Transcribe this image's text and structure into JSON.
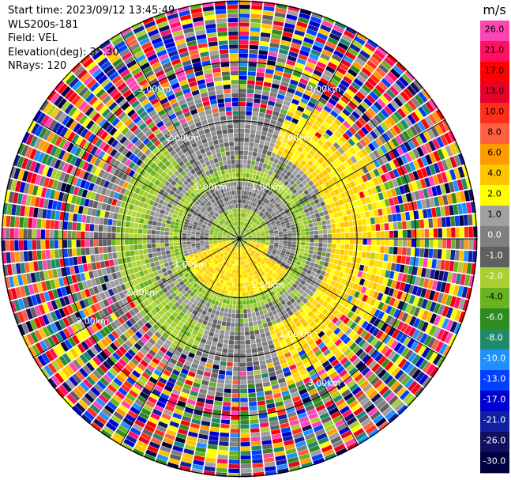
{
  "info": {
    "start_time": "Start time: 2023/09/12 13:45:49",
    "instrument": "WLS200s-181",
    "field": "Field: VEL",
    "elevation": "Elevation(deg): 35.30",
    "nrays": "NRays: 120"
  },
  "chart_data": {
    "type": "heatmap",
    "subtype": "polar-ppi",
    "field": "VEL",
    "nrays": 120,
    "elevation_deg": 35.3,
    "range_rings_km": [
      1.0,
      2.0,
      3.0
    ],
    "ring_labels": {
      "inner": "1.00km",
      "middle": "2.00km",
      "outer": "3.00km"
    },
    "colorbar": {
      "unit": "m/s",
      "ticks": [
        "26.0",
        "21.0",
        "17.0",
        "13.0",
        "10.0",
        "8.0",
        "6.0",
        "4.0",
        "2.0",
        "1.0",
        "0.0",
        "-1.0",
        "-2.0",
        "-4.0",
        "-6.0",
        "-8.0",
        "-10.0",
        "-13.0",
        "-17.0",
        "-21.0",
        "-26.0",
        "-30.0"
      ],
      "colors": [
        "#ff44b4",
        "#ff1060",
        "#ff0000",
        "#e8002a",
        "#ff2e1a",
        "#ff6040",
        "#ff9a00",
        "#ffc400",
        "#ffff00",
        "#a0a0a0",
        "#808080",
        "#606060",
        "#a8d030",
        "#6ab320",
        "#2e8b1e",
        "#1f8a6a",
        "#1e90ff",
        "#0040ff",
        "#0000d0",
        "#1020a0",
        "#101060",
        "#000040"
      ]
    }
  }
}
